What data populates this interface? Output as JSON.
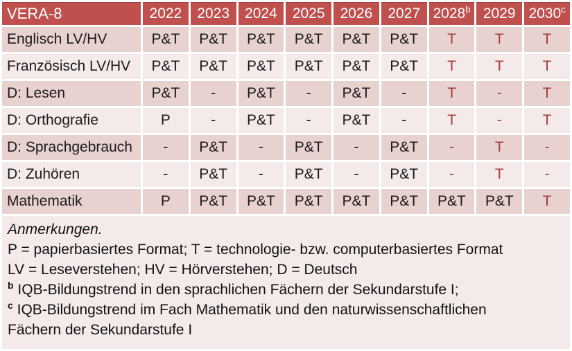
{
  "colors": {
    "header_bg": "#c0504d",
    "header_text": "#ffffff",
    "band_dark": "#e8d2d0",
    "band_light": "#f4eae9",
    "body_text": "#1a1a1a",
    "highlight_text": "#a33c39"
  },
  "table": {
    "title": "VERA-8",
    "year_columns": [
      {
        "text": "2022",
        "sup": ""
      },
      {
        "text": "2023",
        "sup": ""
      },
      {
        "text": "2024",
        "sup": ""
      },
      {
        "text": "2025",
        "sup": ""
      },
      {
        "text": "2026",
        "sup": ""
      },
      {
        "text": "2027",
        "sup": ""
      },
      {
        "text": "2028",
        "sup": "b"
      },
      {
        "text": "2029",
        "sup": ""
      },
      {
        "text": "2030",
        "sup": "c"
      }
    ],
    "rows": [
      {
        "label": "Englisch LV/HV",
        "band": "dark",
        "cells": [
          {
            "text": "P&T",
            "red": false
          },
          {
            "text": "P&T",
            "red": false
          },
          {
            "text": "P&T",
            "red": false
          },
          {
            "text": "P&T",
            "red": false
          },
          {
            "text": "P&T",
            "red": false
          },
          {
            "text": "P&T",
            "red": false
          },
          {
            "text": "T",
            "red": true
          },
          {
            "text": "T",
            "red": true
          },
          {
            "text": "T",
            "red": true
          }
        ]
      },
      {
        "label": "Französisch LV/HV",
        "band": "light",
        "cells": [
          {
            "text": "P&T",
            "red": false
          },
          {
            "text": "P&T",
            "red": false
          },
          {
            "text": "P&T",
            "red": false
          },
          {
            "text": "P&T",
            "red": false
          },
          {
            "text": "P&T",
            "red": false
          },
          {
            "text": "P&T",
            "red": false
          },
          {
            "text": "T",
            "red": true
          },
          {
            "text": "T",
            "red": true
          },
          {
            "text": "T",
            "red": true
          }
        ]
      },
      {
        "label": "D: Lesen",
        "band": "dark",
        "cells": [
          {
            "text": "P&T",
            "red": false
          },
          {
            "text": "-",
            "red": false
          },
          {
            "text": "P&T",
            "red": false
          },
          {
            "text": "-",
            "red": false
          },
          {
            "text": "P&T",
            "red": false
          },
          {
            "text": "-",
            "red": false
          },
          {
            "text": "T",
            "red": true
          },
          {
            "text": "-",
            "red": true
          },
          {
            "text": "T",
            "red": true
          }
        ]
      },
      {
        "label": "D: Orthografie",
        "band": "light",
        "cells": [
          {
            "text": "P",
            "red": false
          },
          {
            "text": "-",
            "red": false
          },
          {
            "text": "P&T",
            "red": false
          },
          {
            "text": "-",
            "red": false
          },
          {
            "text": "P&T",
            "red": false
          },
          {
            "text": "-",
            "red": false
          },
          {
            "text": "T",
            "red": true
          },
          {
            "text": "-",
            "red": true
          },
          {
            "text": "T",
            "red": true
          }
        ]
      },
      {
        "label": "D: Sprachgebrauch",
        "band": "dark",
        "cells": [
          {
            "text": "-",
            "red": false
          },
          {
            "text": "P&T",
            "red": false
          },
          {
            "text": "-",
            "red": false
          },
          {
            "text": "P&T",
            "red": false
          },
          {
            "text": "-",
            "red": false
          },
          {
            "text": "P&T",
            "red": false
          },
          {
            "text": "-",
            "red": true
          },
          {
            "text": "T",
            "red": true
          },
          {
            "text": "-",
            "red": true
          }
        ]
      },
      {
        "label": "D: Zuhören",
        "band": "light",
        "cells": [
          {
            "text": "-",
            "red": false
          },
          {
            "text": "P&T",
            "red": false
          },
          {
            "text": "-",
            "red": false
          },
          {
            "text": "P&T",
            "red": false
          },
          {
            "text": "-",
            "red": false
          },
          {
            "text": "P&T",
            "red": false
          },
          {
            "text": "-",
            "red": true
          },
          {
            "text": "T",
            "red": true
          },
          {
            "text": "-",
            "red": true
          }
        ]
      },
      {
        "label": "Mathematik",
        "band": "dark",
        "cells": [
          {
            "text": "P",
            "red": false
          },
          {
            "text": "P&T",
            "red": false
          },
          {
            "text": "P&T",
            "red": false
          },
          {
            "text": "P&T",
            "red": false
          },
          {
            "text": "P&T",
            "red": false
          },
          {
            "text": "P&T",
            "red": false
          },
          {
            "text": "P&T",
            "red": false
          },
          {
            "text": "P&T",
            "red": false
          },
          {
            "text": "T",
            "red": true
          }
        ]
      }
    ]
  },
  "notes": {
    "lines": [
      {
        "sup": "",
        "italic": true,
        "text": "Anmerkungen."
      },
      {
        "sup": "",
        "italic": false,
        "text": "P = papierbasiertes Format; T = technologie- bzw. computerbasiertes Format"
      },
      {
        "sup": "",
        "italic": false,
        "text": "LV = Leseverstehen; HV = Hörverstehen; D = Deutsch"
      },
      {
        "sup": "b",
        "italic": false,
        "text": "IQB-Bildungstrend in den sprachlichen Fächern der Sekundarstufe I;"
      },
      {
        "sup": "c",
        "italic": false,
        "text": "IQB-Bildungstrend im Fach Mathematik und den naturwissenschaftlichen"
      },
      {
        "sup": "",
        "italic": false,
        "text": "Fächern der Sekundarstufe I"
      }
    ]
  }
}
